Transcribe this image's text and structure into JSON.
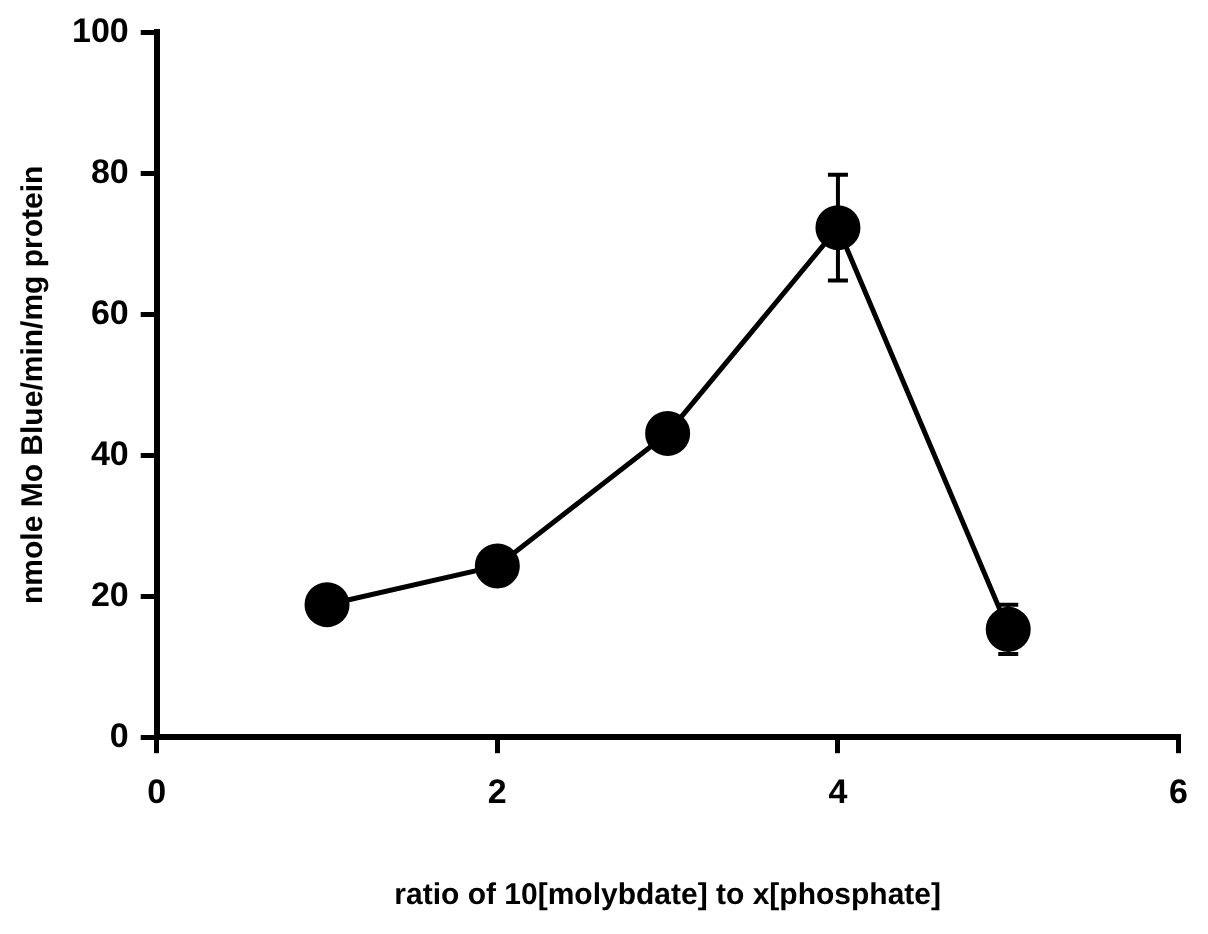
{
  "chart_data": {
    "type": "line",
    "xlabel": "ratio of 10[molybdate] to x[phosphate]",
    "ylabel": "nmole Mo Blue/min/mg protein",
    "x": [
      1,
      2,
      3,
      4,
      5
    ],
    "series": [
      {
        "color": "#000000",
        "values": [
          18.8,
          24.3,
          43.1,
          72.3,
          15.3
        ],
        "errors": [
          null,
          null,
          null,
          7.5,
          3.5
        ]
      }
    ],
    "xlim": [
      0,
      6
    ],
    "xticks": [
      0,
      2,
      4,
      6
    ],
    "ylim": [
      0,
      100
    ],
    "yticks": [
      0,
      20,
      40,
      60,
      80,
      100
    ],
    "grid": false,
    "legend": false,
    "marker": "circle",
    "line_style": "solid"
  }
}
